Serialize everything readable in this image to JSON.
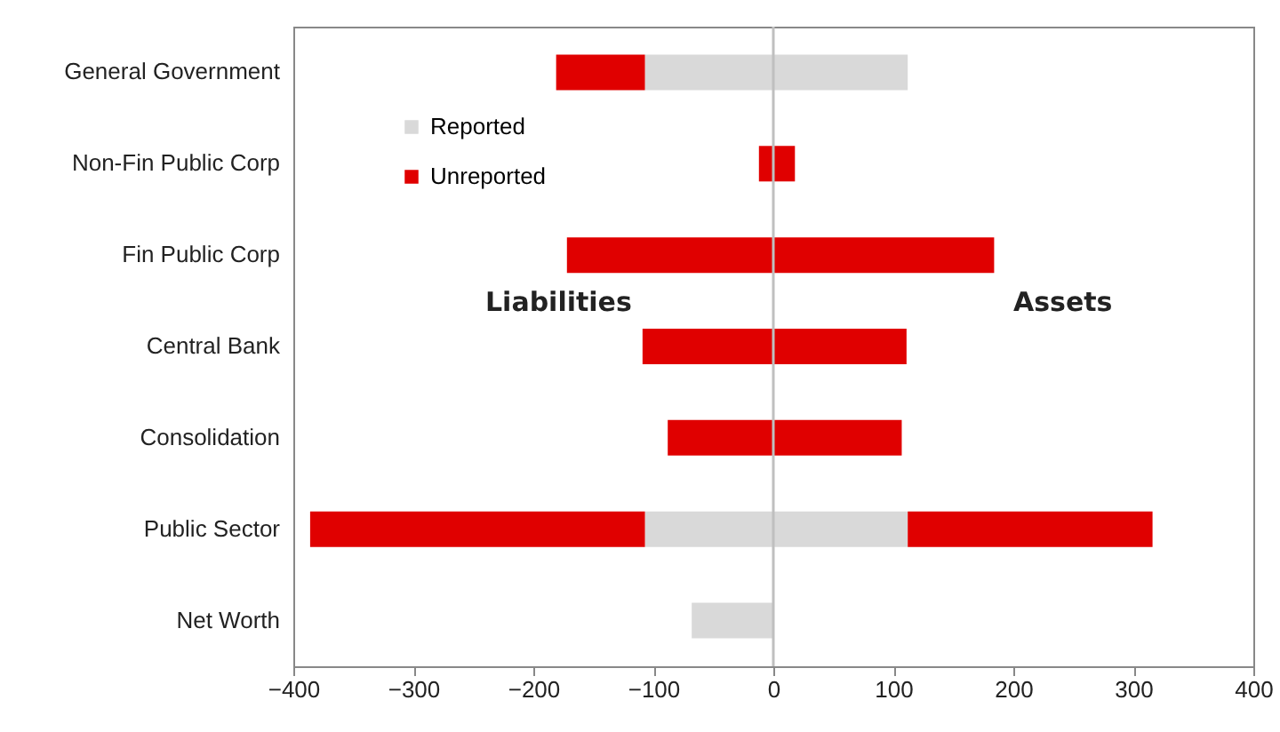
{
  "chart_data": {
    "type": "bar",
    "orientation": "horizontal",
    "stacked": true,
    "categories": [
      "General Government",
      "Non-Fin Public Corp",
      "Fin Public Corp",
      "Central Bank",
      "Consolidation",
      "Public Sector",
      "Net Worth"
    ],
    "series": [
      {
        "name": "Reported",
        "color": "#d9d9d9",
        "values": [
          -107,
          null,
          null,
          null,
          null,
          -107,
          -68
        ]
      },
      {
        "color": "#d9d9d9",
        "values": [
          112,
          null,
          null,
          null,
          null,
          112,
          null
        ]
      },
      {
        "name": "Unreported",
        "color": "#e00000",
        "values": [
          -74,
          -12,
          -172,
          -109,
          -88,
          -279,
          null
        ]
      },
      {
        "color": "#e00000",
        "values": [
          null,
          18,
          184,
          111,
          107,
          204,
          null
        ]
      }
    ],
    "xlim": [
      -400,
      400
    ],
    "xticks": [
      -400,
      -300,
      -200,
      -100,
      0,
      100,
      200,
      300,
      400
    ],
    "ref_lines": [
      {
        "axis": "x",
        "value": 0,
        "color": "#bfbfbf"
      }
    ],
    "annotations": [
      "Liabilities",
      "Assets"
    ],
    "grid": false,
    "legend": "top left"
  }
}
